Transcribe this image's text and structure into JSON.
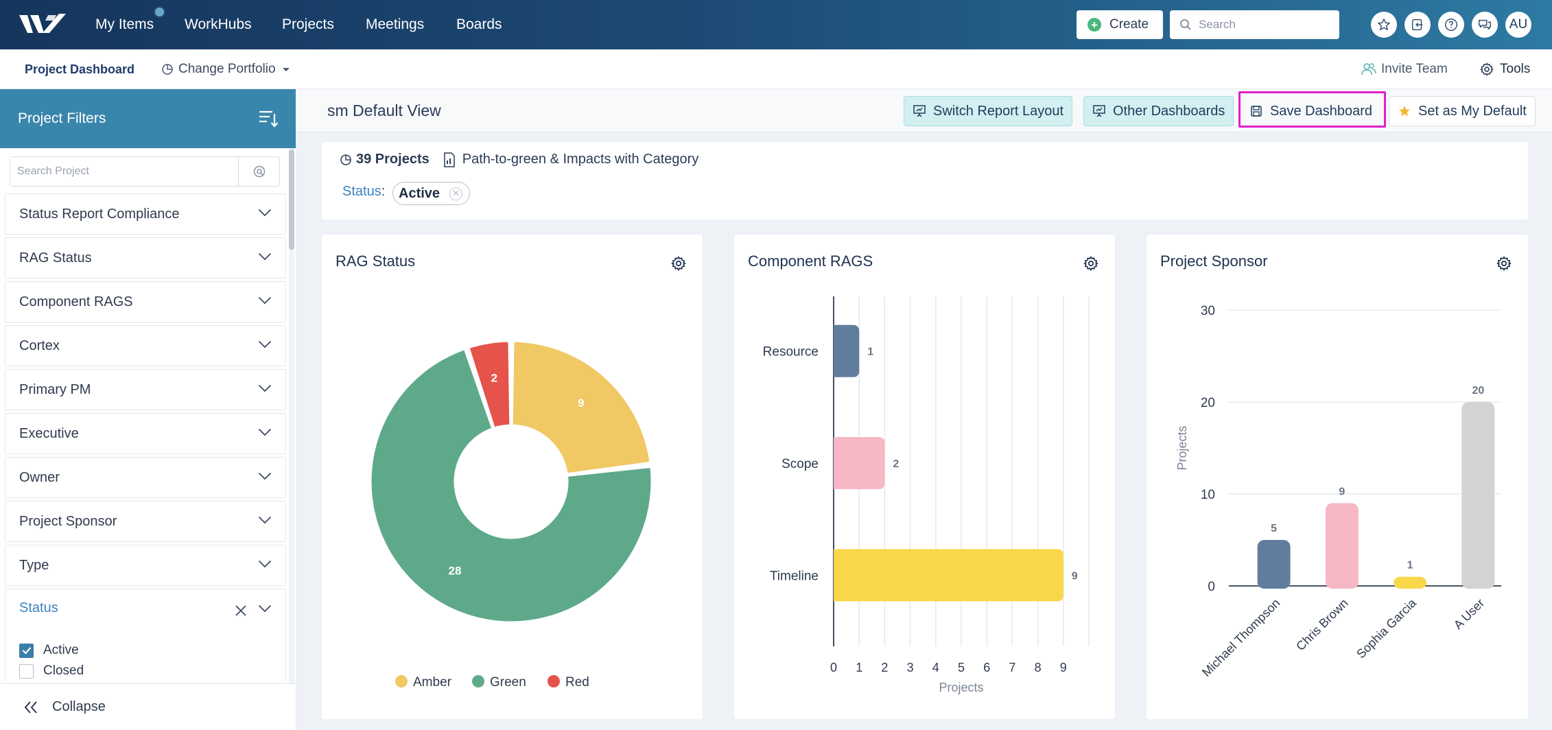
{
  "nav": {
    "items": [
      "My Items",
      "WorkHubs",
      "Projects",
      "Meetings",
      "Boards"
    ],
    "create_label": "Create",
    "search_placeholder": "Search",
    "avatar_initials": "AU"
  },
  "subnav": {
    "dashboard_label": "Project Dashboard",
    "portfolio_label": "Change Portfolio",
    "invite_label": "Invite Team",
    "tools_label": "Tools"
  },
  "sidebar": {
    "title": "Project Filters",
    "search_placeholder": "Search Project",
    "filters": [
      "Status Report Compliance",
      "RAG Status",
      "Component RAGS",
      "Cortex",
      "Primary PM",
      "Executive",
      "Owner",
      "Project Sponsor",
      "Type"
    ],
    "status_filter": {
      "label": "Status",
      "options": [
        {
          "label": "Active",
          "checked": true
        },
        {
          "label": "Closed",
          "checked": false
        }
      ]
    },
    "collapse_label": "Collapse"
  },
  "view": {
    "title": "sm Default View",
    "buttons": {
      "switch_layout": "Switch Report Layout",
      "other_dashboards": "Other Dashboards",
      "save_dashboard": "Save Dashboard",
      "set_default": "Set as My Default"
    }
  },
  "summary": {
    "projects_count": "39 Projects",
    "report_name": "Path-to-green & Impacts with Category",
    "status_label": "Status",
    "status_value": "Active"
  },
  "colors": {
    "amber": "#f0c864",
    "green": "#5fa98b",
    "red": "#e5534b",
    "slate": "#607d9e",
    "pink": "#f5b8c4",
    "yellow": "#f8d84a",
    "gray": "#d3d3d3",
    "accent": "#3986ac",
    "highlight": "#e020c8"
  },
  "chart_data": [
    {
      "type": "pie",
      "title": "RAG Status",
      "labels": [
        "Amber",
        "Green",
        "Red"
      ],
      "values": [
        9,
        28,
        2
      ],
      "colors": [
        "#f0c864",
        "#5fa98b",
        "#e5534b"
      ],
      "legend_position": "bottom"
    },
    {
      "type": "bar",
      "orientation": "horizontal",
      "title": "Component RAGS",
      "categories": [
        "Resource",
        "Scope",
        "Timeline"
      ],
      "values": [
        1,
        2,
        9
      ],
      "colors": [
        "#607d9e",
        "#f5b8c4",
        "#f8d84a"
      ],
      "xlabel": "Projects",
      "xlim": [
        0,
        10
      ],
      "ticks": [
        0,
        1,
        2,
        3,
        4,
        5,
        6,
        7,
        8,
        9
      ]
    },
    {
      "type": "bar",
      "title": "Project Sponsor",
      "categories": [
        "Michael Thompson",
        "Chris Brown",
        "Sophia Garcia",
        "A User"
      ],
      "values": [
        5,
        9,
        1,
        20
      ],
      "colors": [
        "#607d9e",
        "#f5b8c4",
        "#f8d84a",
        "#d3d3d3"
      ],
      "ylabel": "Projects",
      "ylim": [
        0,
        30
      ],
      "ticks": [
        0,
        10,
        20,
        30
      ]
    }
  ]
}
